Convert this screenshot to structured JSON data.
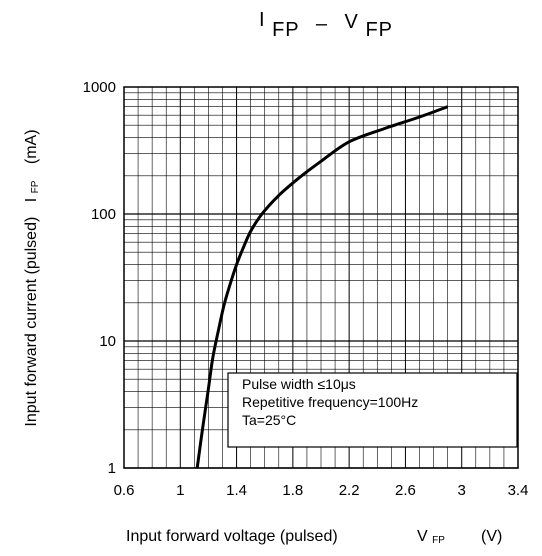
{
  "chart_data": {
    "type": "line",
    "title_parts": {
      "i": "I",
      "i_sub": "FP",
      "dash": "–",
      "v": "V",
      "v_sub": "FP"
    },
    "xlabel": "Input forward voltage (pulsed)",
    "xlabel_symbol": "V",
    "xlabel_sub": "FP",
    "xlabel_unit": "(V)",
    "ylabel": "Input forward current (pulsed)",
    "ylabel_symbol": "I",
    "ylabel_sub": "FP",
    "ylabel_unit": "(mA)",
    "xlim": [
      0.6,
      3.4
    ],
    "ylim": [
      1,
      1000
    ],
    "yscale": "log",
    "x_ticks": [
      0.6,
      1,
      1.4,
      1.8,
      2.2,
      2.6,
      3,
      3.4
    ],
    "x_tick_labels": [
      "0.6",
      "1",
      "1.4",
      "1.8",
      "2.2",
      "2.6",
      "3",
      "3.4"
    ],
    "y_ticks": [
      1,
      10,
      100,
      1000
    ],
    "y_tick_labels": [
      "1",
      "10",
      "100",
      "1000"
    ],
    "grid": true,
    "series": [
      {
        "x": [
          1.12,
          1.16,
          1.2,
          1.23,
          1.27,
          1.31,
          1.35,
          1.4,
          1.45,
          1.5,
          1.58,
          1.7,
          1.85,
          2.0,
          2.2,
          2.45,
          2.7,
          2.9
        ],
        "y": [
          1,
          2.1,
          4.2,
          7.3,
          12,
          19,
          27,
          40,
          55,
          73,
          100,
          140,
          195,
          260,
          370,
          470,
          580,
          700
        ]
      }
    ],
    "annotation_lines": [
      "Pulse width ≤10μs",
      "Repetitive frequency=100Hz",
      "Ta=25°C"
    ],
    "colors": {
      "line": "#000000",
      "grid": "#000000",
      "background": "#ffffff"
    }
  }
}
